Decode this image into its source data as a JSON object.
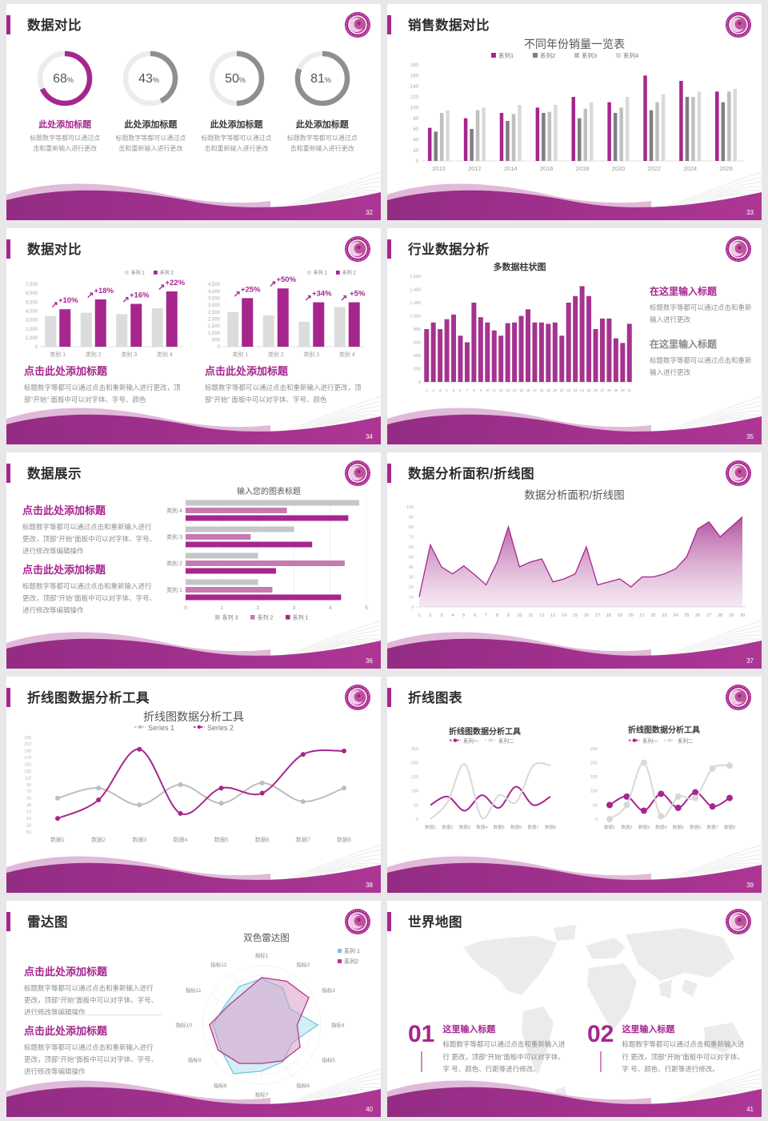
{
  "theme": {
    "accent": "#a6268e",
    "accent_dark": "#8f2a80",
    "pink_light": "#d9a8cf",
    "gray_dark": "#7f7f7f",
    "gray_mid": "#bfbfbf",
    "gray_light": "#d9d9d9",
    "text_dark": "#2d2d2d",
    "text_body": "#8f8f8f",
    "cyan": "#6fc9dd"
  },
  "slides": [
    {
      "title": "数据对比",
      "page": "32",
      "donuts": [
        {
          "label": "68",
          "unit": "%",
          "pct": 68,
          "color": "#a6268e",
          "heading": "此处添加标题",
          "body": "标题数字等都可以通过点击和重新输入进行更改"
        },
        {
          "label": "43",
          "unit": "%",
          "pct": 43,
          "color": "#8f8f8f",
          "heading": "此处添加标题",
          "body": "标题数字等都可以通过点击和重新输入进行更改"
        },
        {
          "label": "50",
          "unit": "%",
          "pct": 50,
          "color": "#8f8f8f",
          "heading": "此处添加标题",
          "body": "标题数字等都可以通过点击和重新输入进行更改"
        },
        {
          "label": "81",
          "unit": "%",
          "pct": 81,
          "color": "#8f8f8f",
          "heading": "此处添加标题",
          "body": "标题数字等都可以通过点击和重新输入进行更改"
        }
      ]
    },
    {
      "title": "销售数据对比",
      "page": "33",
      "chart": {
        "type": "bar",
        "title": "不同年份销量一览表",
        "legend": "top",
        "categories": [
          "2010",
          "2012",
          "2014",
          "2016",
          "2018",
          "2020",
          "2022",
          "2024",
          "2026"
        ],
        "series": [
          {
            "name": "系列1",
            "color": "#a6268e",
            "values": [
              62,
              80,
              90,
              100,
              120,
              110,
              160,
              150,
              130
            ]
          },
          {
            "name": "系列2",
            "color": "#7f7f7f",
            "values": [
              55,
              60,
              75,
              90,
              80,
              90,
              95,
              120,
              110
            ]
          },
          {
            "name": "系列3",
            "color": "#bfbfbf",
            "values": [
              90,
              95,
              88,
              92,
              98,
              100,
              110,
              120,
              130
            ]
          },
          {
            "name": "系列4",
            "color": "#d9d9d9",
            "values": [
              95,
              100,
              105,
              105,
              110,
              120,
              125,
              130,
              135
            ]
          }
        ],
        "ylim": [
          0,
          180
        ],
        "ytick": 20
      }
    },
    {
      "title": "数据对比",
      "page": "34",
      "charts": [
        {
          "type": "bar",
          "legend": "topright",
          "categories": [
            "类别 1",
            "类别 2",
            "类别 3",
            "类别 4"
          ],
          "series": [
            {
              "name": "系列 1",
              "color": "#dcdcdc",
              "values": [
                3450,
                3800,
                3650,
                4300
              ]
            },
            {
              "name": "系列 2",
              "color": "#a6268e",
              "values": [
                4200,
                5300,
                4800,
                6200
              ]
            }
          ],
          "ylim": [
            0,
            7000
          ],
          "ytick": 1000,
          "fmt": "comma",
          "annotations": [
            "+10%",
            "+18%",
            "+16%",
            "+22%"
          ]
        },
        {
          "type": "bar",
          "legend": "topright",
          "categories": [
            "类别 1",
            "类别 2",
            "类别 3",
            "类别 4"
          ],
          "series": [
            {
              "name": "系列 1",
              "color": "#dcdcdc",
              "values": [
                2500,
                2250,
                1800,
                2850
              ]
            },
            {
              "name": "系列 2",
              "color": "#a6268e",
              "values": [
                3500,
                4200,
                3200,
                3200
              ]
            }
          ],
          "ylim": [
            0,
            4500
          ],
          "ytick": 500,
          "fmt": "comma",
          "annotations": [
            "+25%",
            "+50%",
            "+34%",
            "+5%"
          ]
        }
      ],
      "blocks": [
        {
          "heading": "点击此处添加标题",
          "body": "标题数字等都可以通过点击和重新输入进行更改，顶部“开始” 面板中可以对字体、字号、颜色"
        },
        {
          "heading": "点击此处添加标题",
          "body": "标题数字等都可以通过点击和重新输入进行更改，顶部“开始” 面板中可以对字体、字号、颜色"
        }
      ]
    },
    {
      "title": "行业数据分析",
      "page": "35",
      "chart": {
        "type": "bar",
        "title": "多数据柱状图",
        "categories": [
          "1",
          "2",
          "3",
          "4",
          "5",
          "6",
          "7",
          "8",
          "9",
          "10",
          "11",
          "12",
          "13",
          "14",
          "15",
          "16",
          "17",
          "18",
          "19",
          "20",
          "21",
          "22",
          "23",
          "24",
          "25",
          "26",
          "27",
          "28",
          "29",
          "30",
          "31"
        ],
        "series": [
          {
            "name": "数据",
            "color": "#a5338f",
            "values": [
              800,
              900,
              800,
              950,
              1020,
              700,
              600,
              1200,
              980,
              900,
              780,
              700,
              890,
              900,
              1000,
              1100,
              900,
              900,
              880,
              900,
              700,
              1200,
              1300,
              1450,
              1300,
              800,
              960,
              960,
              660,
              590,
              880
            ]
          }
        ],
        "ylim": [
          0,
          1600
        ],
        "ytick": 200,
        "fmt": "comma"
      },
      "blocks": [
        {
          "heading": "在这里输入标题",
          "body": "标题数字等都可以通过点击和重新输入进行更改"
        },
        {
          "heading": "在这里输入标题",
          "body": "标题数字等都可以通过点击和重新输入进行更改"
        }
      ]
    },
    {
      "title": "数据展示",
      "page": "36",
      "blocks": [
        {
          "heading": "点击此处添加标题",
          "body": "标题数字等都可以通过点击和重新输入进行 更改，顶部“开始”面板中可以对字体、字号、进行修改等编辑操作"
        },
        {
          "heading": "点击此处添加标题",
          "body": "标题数字等都可以通过点击和重新输入进行 更改，顶部“开始”面板中可以对字体、字号、进行修改等编辑操作"
        }
      ],
      "chart": {
        "type": "hbar",
        "title": "输入您的图表标题",
        "legend": "bottom",
        "categories": [
          "类别 4",
          "类别 3",
          "类别 2",
          "类别 1"
        ],
        "series": [
          {
            "name": "系列 3",
            "color": "#c6c6c6",
            "values": [
              4.8,
              3.0,
              2.0,
              2.0
            ]
          },
          {
            "name": "系列 2",
            "color": "#c779b4",
            "values": [
              2.8,
              1.8,
              4.4,
              2.4
            ]
          },
          {
            "name": "系列 1",
            "color": "#a6268e",
            "values": [
              4.5,
              3.5,
              2.5,
              4.3
            ]
          }
        ],
        "xlim": [
          0,
          5
        ],
        "xtick": 1
      }
    },
    {
      "title": "数据分析面积/折线图",
      "page": "37",
      "chart": {
        "type": "area",
        "title": "数据分析面积/折线图",
        "categories": [
          "1",
          "2",
          "3",
          "4",
          "5",
          "6",
          "7",
          "8",
          "9",
          "10",
          "11",
          "12",
          "13",
          "14",
          "15",
          "16",
          "17",
          "18",
          "19",
          "20",
          "21",
          "22",
          "23",
          "24",
          "25",
          "26",
          "27",
          "28",
          "29",
          "30"
        ],
        "values": [
          10,
          62,
          40,
          33,
          41,
          32,
          22,
          45,
          80,
          40,
          45,
          48,
          25,
          28,
          33,
          60,
          22,
          25,
          28,
          20,
          30,
          30,
          33,
          38,
          50,
          78,
          85,
          70,
          80,
          90
        ],
        "color": "#a6268e",
        "ylim": [
          0,
          100
        ],
        "ytick": 10
      }
    },
    {
      "title": "折线图数据分析工具",
      "page": "38",
      "chart": {
        "type": "line",
        "title": "折线图数据分析工具",
        "legend": "top",
        "categories": [
          "数据1",
          "数据2",
          "数据3",
          "数据4",
          "数据5",
          "数据6",
          "数据7",
          "数据8"
        ],
        "series": [
          {
            "name": "Series 1",
            "color": "#bdbdbd",
            "values": [
              50,
              80,
              30,
              90,
              35,
              95,
              40,
              80
            ],
            "markers": true
          },
          {
            "name": "Series 2",
            "color": "#a6268e",
            "values": [
              -10,
              45,
              195,
              5,
              80,
              65,
              180,
              190
            ],
            "markers": true
          }
        ],
        "ylim": [
          -50,
          230
        ],
        "ytick": 20
      }
    },
    {
      "title": "折线图表",
      "page": "39",
      "charts": [
        {
          "type": "line",
          "title": "折线图数据分析工具",
          "legend": "top",
          "categories": [
            "数据1",
            "数据2",
            "数据3",
            "数据4",
            "数据5",
            "数据6",
            "数据7",
            "数据8"
          ],
          "series": [
            {
              "name": "系列一",
              "color": "#a6268e",
              "values": [
                50,
                80,
                30,
                85,
                40,
                115,
                50,
                80
              ],
              "markers": false
            },
            {
              "name": "系列二",
              "color": "#d8d8d8",
              "values": [
                0,
                60,
                195,
                5,
                85,
                60,
                190,
                190
              ],
              "markers": false
            }
          ],
          "ylim": [
            0,
            250
          ],
          "ytick": 50
        },
        {
          "type": "line",
          "title": "折线图数据分析工具",
          "legend": "top",
          "categories": [
            "数据1",
            "数据2",
            "数据3",
            "数据4",
            "数据5",
            "数据6",
            "数据7",
            "数据8"
          ],
          "series": [
            {
              "name": "系列一",
              "color": "#a6268e",
              "values": [
                50,
                80,
                30,
                90,
                40,
                95,
                45,
                75
              ],
              "markers": true
            },
            {
              "name": "系列二",
              "color": "#d8d8d8",
              "values": [
                0,
                50,
                200,
                10,
                80,
                75,
                180,
                190
              ],
              "markers": true
            }
          ],
          "ylim": [
            0,
            250
          ],
          "ytick": 50
        }
      ]
    },
    {
      "title": "雷达图",
      "page": "40",
      "blocks": [
        {
          "heading": "点击此处添加标题",
          "body": "标题数字等都可以通过点击和重新输入进行 更改，顶部“开始”面板中可以对字体、字号、进行修改等编辑操作"
        },
        {
          "heading": "点击此处添加标题",
          "body": "标题数字等都可以通过点击和重新输入进行 更改，顶部“开始”面板中可以对字体、字号、进行修改等编辑操作"
        }
      ],
      "chart": {
        "type": "radar",
        "title": "双色雷达图",
        "legend": "right",
        "axes": [
          "指标1",
          "指标2",
          "指标3",
          "指标4",
          "指标5",
          "指标6",
          "指标7",
          "指标8",
          "指标9",
          "指标10",
          "指标11",
          "指标12"
        ],
        "series": [
          {
            "name": "系列 1",
            "color": "#6fc9dd",
            "fill": "#aadfec",
            "values": [
              0.78,
              0.72,
              0.55,
              0.95,
              0.6,
              0.72,
              0.78,
              0.95,
              0.8,
              0.82,
              0.7,
              0.75
            ]
          },
          {
            "name": "系列2",
            "color": "#b4368f",
            "fill": "#d795c4",
            "values": [
              0.8,
              0.85,
              0.92,
              0.6,
              0.75,
              0.7,
              0.65,
              0.75,
              0.85,
              0.88,
              0.65,
              0.62
            ]
          }
        ]
      }
    },
    {
      "title": "世界地图",
      "page": "41",
      "items": [
        {
          "num": "01",
          "heading": "这里输入标题",
          "body": "标题数字等都可以通过点击和重新输入进行 更改，顶部“开始”面板中可以对字体、字 号、颜色、行距等进行修改。"
        },
        {
          "num": "02",
          "heading": "这里输入标题",
          "body": "标题数字等都可以通过点击和重新输入进行 更改，顶部“开始”面板中可以对字体、字 号、颜色、行距等进行修改。"
        }
      ]
    }
  ]
}
